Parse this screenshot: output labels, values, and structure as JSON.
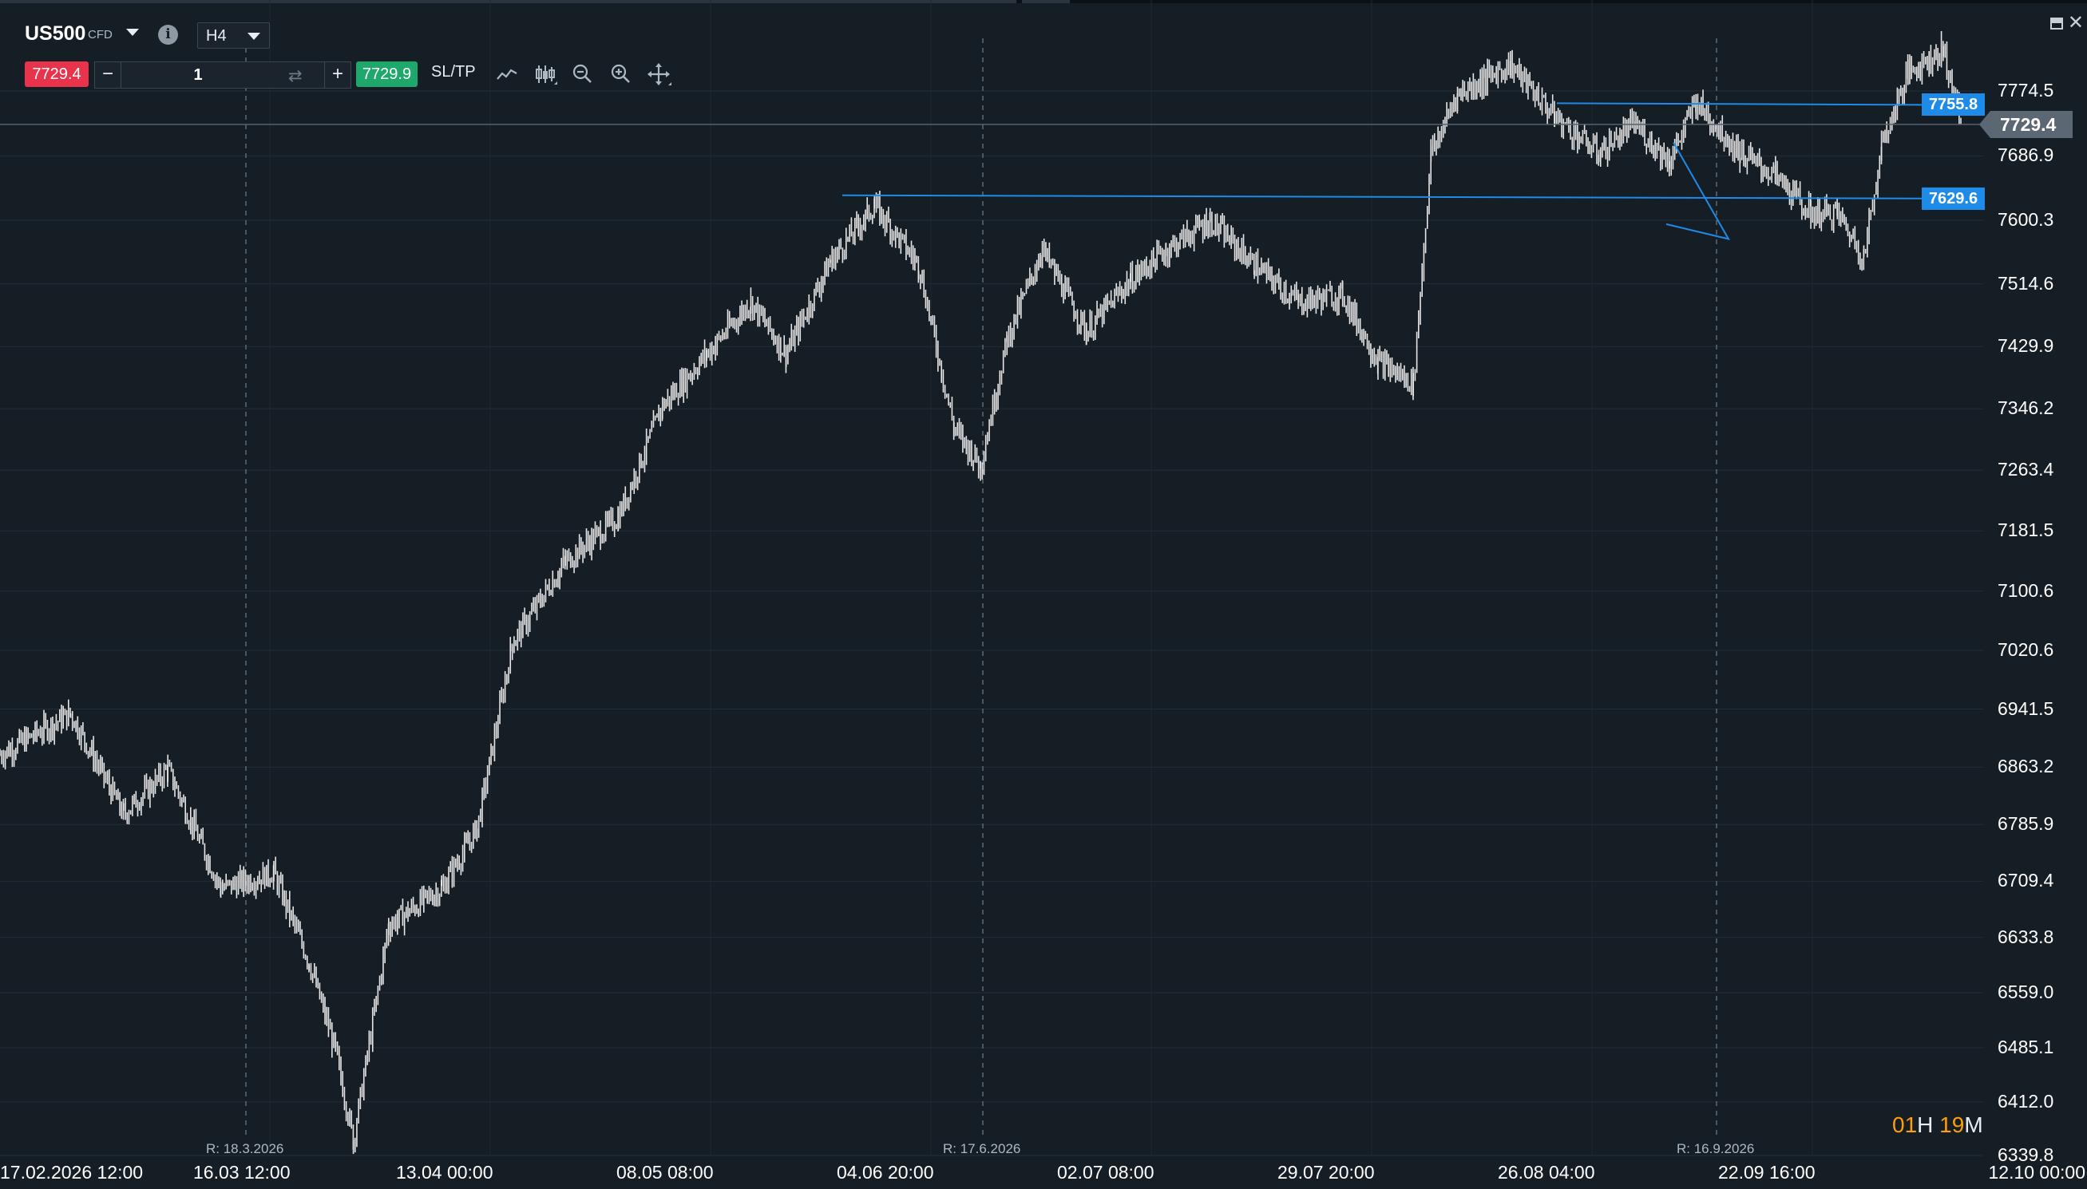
{
  "instrument": {
    "symbol": "US500",
    "type": "CFD",
    "timeframe": "H4"
  },
  "trade_panel": {
    "sell_price": "7729.4",
    "quantity": "1",
    "buy_price": "7729.9",
    "sltp_label": "SL/TP",
    "minus": "−",
    "plus": "+"
  },
  "toolbar": {
    "icons": [
      "line-chart-icon",
      "candlestick-icon",
      "zoom-out-icon",
      "zoom-in-icon",
      "move-icon"
    ]
  },
  "colors": {
    "background": "#161e25",
    "price_line": "#e6e6e6",
    "level_line": "#1e8be8",
    "sell": "#e8334a",
    "buy": "#1fa86b",
    "countdown_accent": "#ff9d0a"
  },
  "countdown": {
    "hours": "01",
    "hours_unit": "H",
    "minutes": "19",
    "minutes_unit": "M"
  },
  "chart_data": {
    "type": "line",
    "series_style": "ohlc bars (H4)",
    "ylim": [
      6339.8,
      7874
    ],
    "y_ticks": [
      "7774.5",
      "7686.9",
      "7600.3",
      "7514.6",
      "7429.9",
      "7346.2",
      "7263.4",
      "7181.5",
      "7100.6",
      "7020.6",
      "6941.5",
      "6863.2",
      "6785.9",
      "6709.4",
      "6633.8",
      "6559.0",
      "6485.1",
      "6412.0",
      "6339.8"
    ],
    "x_ticks": [
      "17.02.2026 12:00",
      "16.03 12:00",
      "13.04 00:00",
      "08.05 08:00",
      "04.06 20:00",
      "02.07 08:00",
      "29.07 20:00",
      "26.08 04:00",
      "22.09 16:00",
      "12.10 00:00"
    ],
    "rollovers": [
      "R: 18.3.2026",
      "R: 17.6.2026",
      "R: 16.9.2026"
    ],
    "current_price": 7729.4,
    "current_price_label": "7729.4",
    "horizontal_levels": [
      {
        "value": 7755.8,
        "label": "7755.8"
      },
      {
        "value": 7629.6,
        "label": "7629.6"
      }
    ],
    "x": [
      "17.02.2026",
      "25.02.2026",
      "03.03.2026",
      "08.03.2026",
      "14.03.2026",
      "20.03.2026",
      "24.03.2026",
      "27.03.2026",
      "29.03.2026",
      "02.04.2026",
      "08.04.2026",
      "12.04.2026",
      "16.04.2026",
      "22.04.2026",
      "28.04.2026",
      "03.05.2026",
      "08.05.2026",
      "13.05.2026",
      "17.05.2026",
      "22.05.2026",
      "27.05.2026",
      "01.06.2026",
      "05.06.2026",
      "08.06.2026",
      "11.06.2026",
      "15.06.2026",
      "20.06.2026",
      "25.06.2026",
      "29.06.2026",
      "04.07.2026",
      "09.07.2026",
      "14.07.2026",
      "19.07.2026",
      "23.07.2026",
      "27.07.2026",
      "29.07.2026",
      "01.08.2026",
      "04.08.2026",
      "07.08.2026",
      "12.08.2026",
      "17.08.2026",
      "21.08.2026",
      "25.08.2026",
      "28.08.2026",
      "02.09.2026",
      "06.09.2026",
      "10.09.2026",
      "13.09.2026",
      "16.09.2026",
      "18.09.2026",
      "21.09.2026",
      "25.09.2026",
      "27.09.2026"
    ],
    "y": [
      6880,
      6935,
      6800,
      6860,
      6700,
      6720,
      6600,
      6480,
      6360,
      6650,
      6700,
      6780,
      7030,
      7140,
      7200,
      7350,
      7420,
      7490,
      7420,
      7545,
      7620,
      7540,
      7320,
      7270,
      7440,
      7560,
      7450,
      7520,
      7560,
      7600,
      7540,
      7490,
      7500,
      7410,
      7380,
      7690,
      7770,
      7790,
      7810,
      7740,
      7690,
      7730,
      7680,
      7760,
      7690,
      7660,
      7610,
      7610,
      7550,
      7700,
      7800,
      7830,
      7730
    ],
    "annotations": [
      {
        "type": "triangle",
        "label": "",
        "note": "drawn near 16.09.2026 between 7600 and 7710"
      }
    ]
  }
}
